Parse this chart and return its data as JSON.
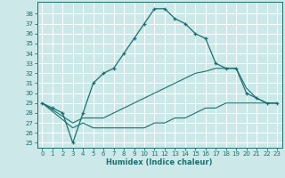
{
  "xlabel": "Humidex (Indice chaleur)",
  "bg_color": "#cce8e8",
  "line_color": "#1a7070",
  "grid_color": "#ffffff",
  "xlim": [
    -0.5,
    23.5
  ],
  "ylim": [
    24.5,
    39.2
  ],
  "yticks": [
    25,
    26,
    27,
    28,
    29,
    30,
    31,
    32,
    33,
    34,
    35,
    36,
    37,
    38
  ],
  "xticks": [
    0,
    1,
    2,
    3,
    4,
    5,
    6,
    7,
    8,
    9,
    10,
    11,
    12,
    13,
    14,
    15,
    16,
    17,
    18,
    19,
    20,
    21,
    22,
    23
  ],
  "line_main": {
    "x": [
      0,
      1,
      2,
      3,
      4,
      5,
      6,
      7,
      8,
      9,
      10,
      11,
      12,
      13,
      14,
      15,
      16,
      17,
      18,
      19,
      20,
      21,
      22,
      23
    ],
    "y": [
      29.0,
      28.5,
      28.0,
      25.0,
      28.0,
      31.0,
      32.0,
      32.5,
      34.0,
      35.5,
      37.0,
      38.5,
      38.5,
      37.5,
      37.0,
      36.0,
      35.5,
      33.0,
      32.5,
      32.5,
      30.0,
      29.5,
      29.0,
      29.0
    ]
  },
  "line2": {
    "x": [
      0,
      3,
      4,
      5,
      6,
      7,
      8,
      9,
      10,
      11,
      12,
      13,
      14,
      15,
      16,
      17,
      18,
      19,
      20,
      21,
      22,
      23
    ],
    "y": [
      29.0,
      27.0,
      27.5,
      27.5,
      27.5,
      28.0,
      28.5,
      29.0,
      29.5,
      30.0,
      30.5,
      31.0,
      31.5,
      32.0,
      32.2,
      32.5,
      32.5,
      32.5,
      30.5,
      29.5,
      29.0,
      29.0
    ]
  },
  "line3": {
    "x": [
      0,
      3,
      4,
      5,
      6,
      7,
      8,
      9,
      10,
      11,
      12,
      13,
      14,
      15,
      16,
      17,
      18,
      19,
      20,
      21,
      22,
      23
    ],
    "y": [
      29.0,
      26.5,
      27.0,
      26.5,
      26.5,
      26.5,
      26.5,
      26.5,
      26.5,
      27.0,
      27.0,
      27.5,
      27.5,
      28.0,
      28.5,
      28.5,
      29.0,
      29.0,
      29.0,
      29.0,
      29.0,
      29.0
    ]
  }
}
